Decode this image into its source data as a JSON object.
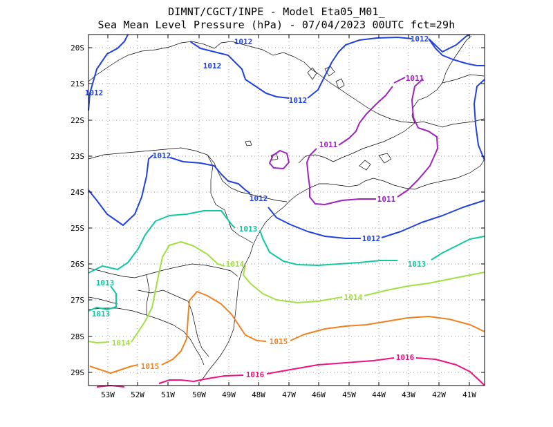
{
  "title": {
    "line1": "DIMNT/CGCT/INPE -  Model Eta05_M01_",
    "line2": "Sea Mean Level Pressure (hPa) - 07/04/2023 00UTC fct=29h"
  },
  "axes": {
    "lat_labels": [
      "20S",
      "21S",
      "22S",
      "23S",
      "24S",
      "25S",
      "26S",
      "27S",
      "28S",
      "29S"
    ],
    "lon_labels": [
      "53W",
      "52W",
      "51W",
      "50W",
      "49W",
      "48W",
      "47W",
      "46W",
      "45W",
      "44W",
      "43W",
      "42W",
      "41W"
    ]
  },
  "contours": [
    {
      "level": "1011",
      "color": "#a020c0"
    },
    {
      "level": "1012",
      "color": "#2040e0"
    },
    {
      "level": "1013",
      "color": "#10c8a0"
    },
    {
      "level": "1014",
      "color": "#a0e040"
    },
    {
      "level": "1015",
      "color": "#f08020"
    },
    {
      "level": "1016",
      "color": "#f01080"
    }
  ],
  "contour_labels": [
    {
      "text": "1012",
      "level": "1012"
    },
    {
      "text": "1012",
      "level": "1012"
    },
    {
      "text": "1012",
      "level": "1012"
    },
    {
      "text": "1012",
      "level": "1012"
    },
    {
      "text": "1012",
      "level": "1012"
    },
    {
      "text": "1012",
      "level": "1012"
    },
    {
      "text": "1012",
      "level": "1012"
    },
    {
      "text": "1012",
      "level": "1012"
    },
    {
      "text": "1011",
      "level": "1011"
    },
    {
      "text": "1011",
      "level": "1011"
    },
    {
      "text": "1011",
      "level": "1011"
    },
    {
      "text": "1013",
      "level": "1013"
    },
    {
      "text": "1013",
      "level": "1013"
    },
    {
      "text": "1013",
      "level": "1013"
    },
    {
      "text": "1013",
      "level": "1013"
    },
    {
      "text": "1014",
      "level": "1014"
    },
    {
      "text": "1014",
      "level": "1014"
    },
    {
      "text": "1014",
      "level": "1014"
    },
    {
      "text": "1015",
      "level": "1015"
    },
    {
      "text": "1015",
      "level": "1015"
    },
    {
      "text": "1016",
      "level": "1016"
    },
    {
      "text": "1016",
      "level": "1016"
    }
  ]
}
